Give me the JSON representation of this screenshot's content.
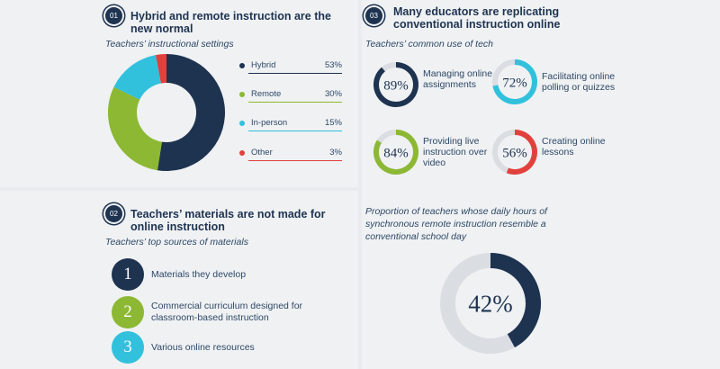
{
  "section1": {
    "number": "01",
    "title": "Hybrid and remote instruction are the new normal",
    "subtitle": "Teachers’ instructional settings"
  },
  "section2": {
    "number": "02",
    "title": "Teachers’ materials are not made for online instruction",
    "subtitle": "Teachers’ top sources of materials",
    "items": [
      {
        "num": "1",
        "label": "Materials they develop",
        "color": "#1e3350"
      },
      {
        "num": "2",
        "label": "Commercial curriculum designed for classroom-based instruction",
        "color": "#8cb834"
      },
      {
        "num": "3",
        "label": "Various online resources",
        "color": "#31c1dc"
      }
    ]
  },
  "section3": {
    "number": "03",
    "title": "Many educators are replicating conventional instruction online",
    "subtitle": "Teachers’ common use of tech",
    "proportion_caption": "Proportion of teachers whose daily hours of synchronous remote instruction resemble a conventional school day"
  },
  "colors": {
    "navy": "#1e3350",
    "green": "#8cb834",
    "cyan": "#31c1dc",
    "red": "#e2403c",
    "track": "#dadde2"
  },
  "chart_data": [
    {
      "type": "pie",
      "title": "Teachers’ instructional settings",
      "categories": [
        "Hybrid",
        "Remote",
        "In-person",
        "Other"
      ],
      "values": [
        53,
        30,
        15,
        3
      ],
      "value_labels": [
        "53%",
        "30%",
        "15%",
        "3%"
      ],
      "colors": [
        "#1e3350",
        "#8cb834",
        "#31c1dc",
        "#e2403c"
      ],
      "style": "donut",
      "legend": "right"
    },
    {
      "type": "pie",
      "title": "Teachers’ common use of tech",
      "style": "progress-rings",
      "items": [
        {
          "label": "Managing online assignments",
          "value": 89,
          "value_label": "89%",
          "color": "#1e3350"
        },
        {
          "label": "Facilitating online polling or quizzes",
          "value": 72,
          "value_label": "72%",
          "color": "#31c1dc"
        },
        {
          "label": "Providing live instruction over video",
          "value": 84,
          "value_label": "84%",
          "color": "#8cb834"
        },
        {
          "label": "Creating online lessons",
          "value": 56,
          "value_label": "56%",
          "color": "#e2403c"
        }
      ]
    },
    {
      "type": "pie",
      "title": "Proportion of teachers whose daily hours of synchronous remote instruction resemble a conventional school day",
      "style": "progress-ring",
      "value": 42,
      "value_label": "42%",
      "color": "#1e3350"
    }
  ]
}
